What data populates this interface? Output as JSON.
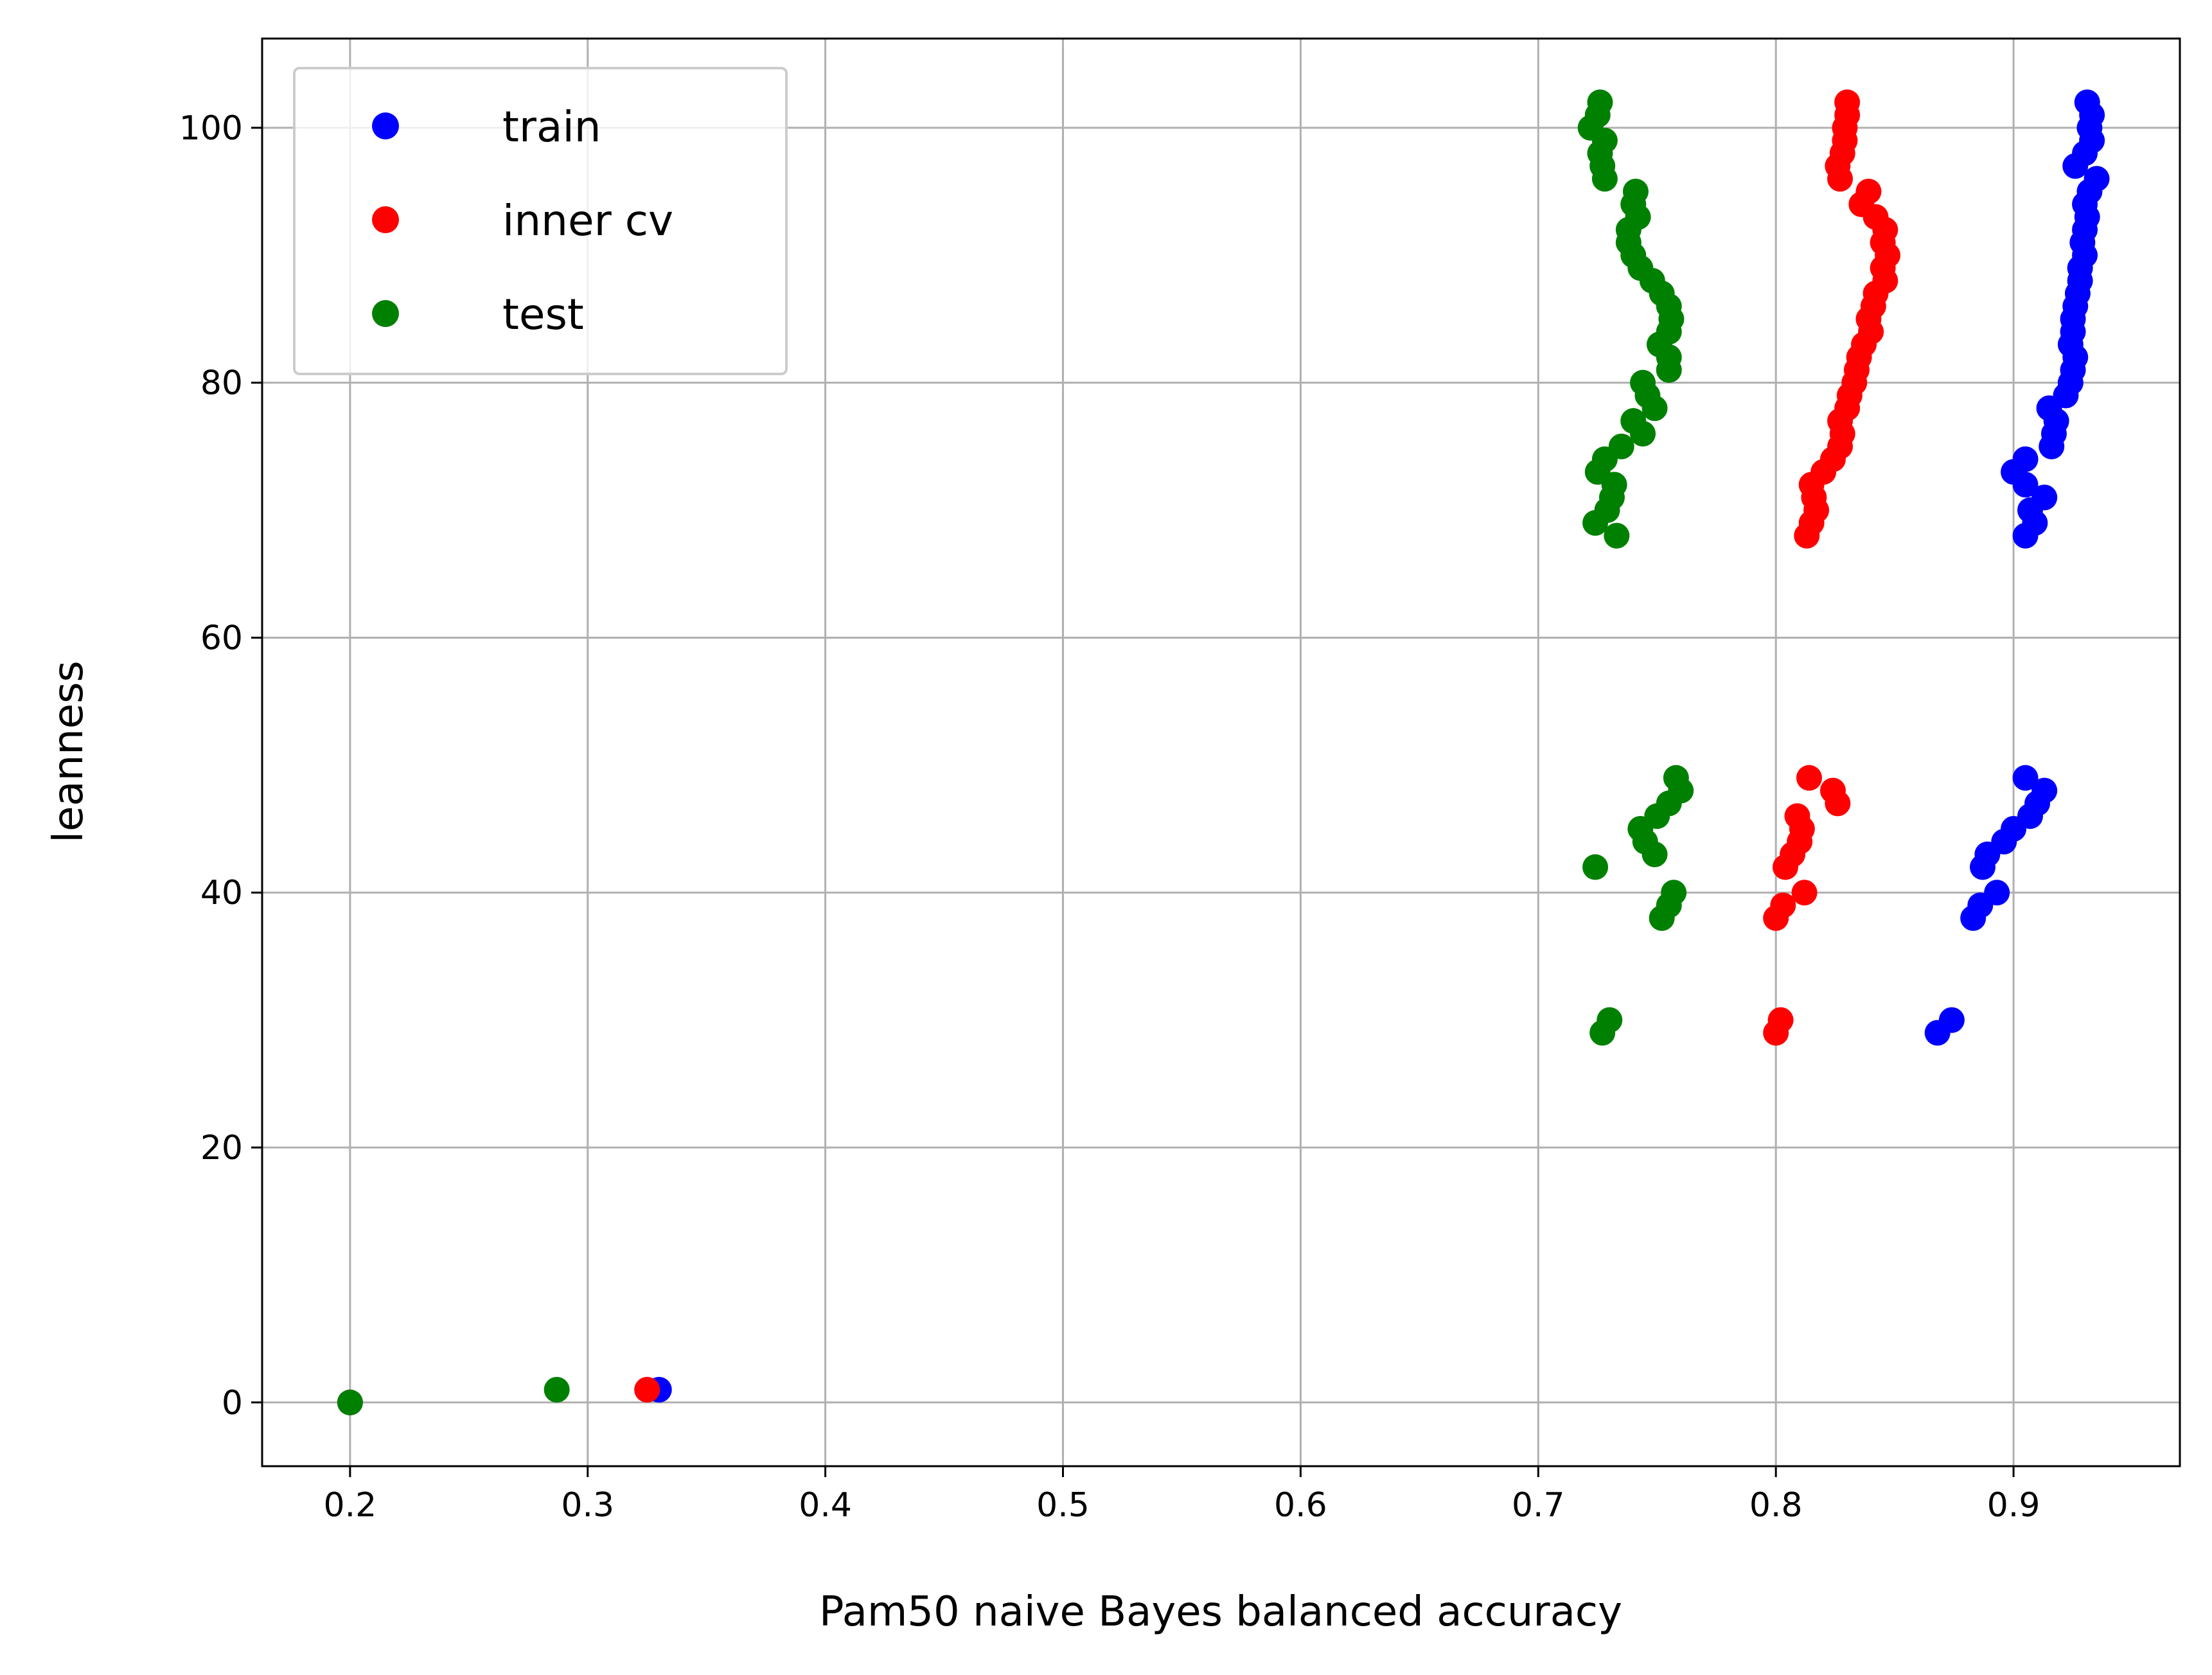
{
  "chart_data": {
    "type": "scatter",
    "title": "",
    "xlabel": "Pam50 naive Bayes balanced accuracy",
    "ylabel": "leanness",
    "xlim": [
      0.163,
      0.97
    ],
    "ylim": [
      -5,
      107
    ],
    "x_ticks": [
      0.2,
      0.3,
      0.4,
      0.5,
      0.6,
      0.7,
      0.8,
      0.9
    ],
    "x_tick_labels": [
      "0.2",
      "0.3",
      "0.4",
      "0.5",
      "0.6",
      "0.7",
      "0.8",
      "0.9"
    ],
    "y_ticks": [
      0,
      20,
      40,
      60,
      80,
      100
    ],
    "y_tick_labels": [
      "0",
      "20",
      "40",
      "60",
      "80",
      "100"
    ],
    "grid": true,
    "legend_position": "top-left",
    "series": [
      {
        "name": "train",
        "color": "#0000ff",
        "points": [
          [
            0.2,
            0
          ],
          [
            0.33,
            1
          ],
          [
            0.868,
            29
          ],
          [
            0.874,
            30
          ],
          [
            0.883,
            38
          ],
          [
            0.886,
            39
          ],
          [
            0.893,
            40
          ],
          [
            0.887,
            42
          ],
          [
            0.889,
            43
          ],
          [
            0.896,
            44
          ],
          [
            0.9,
            45
          ],
          [
            0.907,
            46
          ],
          [
            0.91,
            47
          ],
          [
            0.913,
            48
          ],
          [
            0.905,
            49
          ],
          [
            0.905,
            68
          ],
          [
            0.909,
            69
          ],
          [
            0.907,
            70
          ],
          [
            0.913,
            71
          ],
          [
            0.905,
            72
          ],
          [
            0.9,
            73
          ],
          [
            0.905,
            74
          ],
          [
            0.916,
            75
          ],
          [
            0.917,
            76
          ],
          [
            0.918,
            77
          ],
          [
            0.915,
            78
          ],
          [
            0.922,
            79
          ],
          [
            0.924,
            80
          ],
          [
            0.925,
            81
          ],
          [
            0.926,
            82
          ],
          [
            0.924,
            83
          ],
          [
            0.925,
            84
          ],
          [
            0.925,
            85
          ],
          [
            0.926,
            86
          ],
          [
            0.927,
            87
          ],
          [
            0.928,
            88
          ],
          [
            0.928,
            89
          ],
          [
            0.93,
            90
          ],
          [
            0.929,
            91
          ],
          [
            0.93,
            92
          ],
          [
            0.931,
            93
          ],
          [
            0.93,
            94
          ],
          [
            0.932,
            95
          ],
          [
            0.935,
            96
          ],
          [
            0.926,
            97
          ],
          [
            0.93,
            98
          ],
          [
            0.933,
            99
          ],
          [
            0.932,
            100
          ],
          [
            0.933,
            101
          ],
          [
            0.931,
            102
          ]
        ]
      },
      {
        "name": "inner cv",
        "color": "#ff0000",
        "points": [
          [
            0.2,
            0
          ],
          [
            0.325,
            1
          ],
          [
            0.8,
            29
          ],
          [
            0.802,
            30
          ],
          [
            0.8,
            38
          ],
          [
            0.803,
            39
          ],
          [
            0.812,
            40
          ],
          [
            0.804,
            42
          ],
          [
            0.807,
            43
          ],
          [
            0.81,
            44
          ],
          [
            0.811,
            45
          ],
          [
            0.809,
            46
          ],
          [
            0.826,
            47
          ],
          [
            0.824,
            48
          ],
          [
            0.814,
            49
          ],
          [
            0.813,
            68
          ],
          [
            0.815,
            69
          ],
          [
            0.817,
            70
          ],
          [
            0.816,
            71
          ],
          [
            0.815,
            72
          ],
          [
            0.82,
            73
          ],
          [
            0.824,
            74
          ],
          [
            0.827,
            75
          ],
          [
            0.828,
            76
          ],
          [
            0.827,
            77
          ],
          [
            0.83,
            78
          ],
          [
            0.831,
            79
          ],
          [
            0.833,
            80
          ],
          [
            0.834,
            81
          ],
          [
            0.835,
            82
          ],
          [
            0.837,
            83
          ],
          [
            0.84,
            84
          ],
          [
            0.839,
            85
          ],
          [
            0.841,
            86
          ],
          [
            0.842,
            87
          ],
          [
            0.846,
            88
          ],
          [
            0.845,
            89
          ],
          [
            0.847,
            90
          ],
          [
            0.845,
            91
          ],
          [
            0.846,
            92
          ],
          [
            0.842,
            93
          ],
          [
            0.836,
            94
          ],
          [
            0.839,
            95
          ],
          [
            0.827,
            96
          ],
          [
            0.826,
            97
          ],
          [
            0.828,
            98
          ],
          [
            0.829,
            99
          ],
          [
            0.829,
            100
          ],
          [
            0.83,
            101
          ],
          [
            0.83,
            102
          ]
        ]
      },
      {
        "name": "test",
        "color": "#008000",
        "points": [
          [
            0.2,
            0
          ],
          [
            0.287,
            1
          ],
          [
            0.727,
            29
          ],
          [
            0.73,
            30
          ],
          [
            0.752,
            38
          ],
          [
            0.755,
            39
          ],
          [
            0.757,
            40
          ],
          [
            0.724,
            42
          ],
          [
            0.749,
            43
          ],
          [
            0.745,
            44
          ],
          [
            0.743,
            45
          ],
          [
            0.75,
            46
          ],
          [
            0.755,
            47
          ],
          [
            0.76,
            48
          ],
          [
            0.758,
            49
          ],
          [
            0.733,
            68
          ],
          [
            0.724,
            69
          ],
          [
            0.729,
            70
          ],
          [
            0.731,
            71
          ],
          [
            0.732,
            72
          ],
          [
            0.725,
            73
          ],
          [
            0.728,
            74
          ],
          [
            0.735,
            75
          ],
          [
            0.744,
            76
          ],
          [
            0.74,
            77
          ],
          [
            0.749,
            78
          ],
          [
            0.746,
            79
          ],
          [
            0.744,
            80
          ],
          [
            0.755,
            81
          ],
          [
            0.755,
            82
          ],
          [
            0.751,
            83
          ],
          [
            0.755,
            84
          ],
          [
            0.756,
            85
          ],
          [
            0.755,
            86
          ],
          [
            0.752,
            87
          ],
          [
            0.748,
            88
          ],
          [
            0.743,
            89
          ],
          [
            0.74,
            90
          ],
          [
            0.738,
            91
          ],
          [
            0.738,
            92
          ],
          [
            0.742,
            93
          ],
          [
            0.74,
            94
          ],
          [
            0.741,
            95
          ],
          [
            0.728,
            96
          ],
          [
            0.727,
            97
          ],
          [
            0.726,
            98
          ],
          [
            0.728,
            99
          ],
          [
            0.722,
            100
          ],
          [
            0.725,
            101
          ],
          [
            0.726,
            102
          ]
        ]
      }
    ]
  }
}
